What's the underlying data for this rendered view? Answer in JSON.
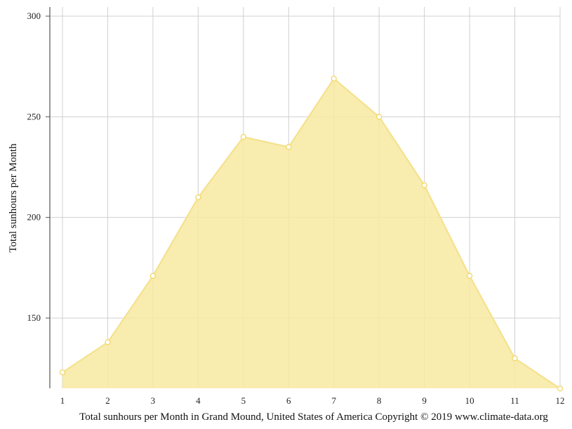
{
  "chart_data": {
    "type": "area",
    "title": "",
    "xlabel": "",
    "ylabel": "Total sunhours per Month",
    "caption": "Total sunhours per Month in Grand Mound, United States of America Copyright © 2019 www.climate-data.org",
    "x": [
      1,
      2,
      3,
      4,
      5,
      6,
      7,
      8,
      9,
      10,
      11,
      12
    ],
    "x_tick_labels": [
      "1",
      "2",
      "3",
      "4",
      "5",
      "6",
      "7",
      "8",
      "9",
      "10",
      "11",
      "12"
    ],
    "y_tick_labels": [
      "300",
      "250",
      "200",
      "150"
    ],
    "y_ticks": [
      300,
      250,
      200,
      150
    ],
    "series": [
      {
        "values": [
          123,
          138,
          171,
          210,
          240,
          235,
          269,
          250,
          216,
          171,
          130,
          115
        ]
      }
    ],
    "ylim": [
      115,
      305
    ],
    "xlim": [
      1,
      12
    ],
    "grid": true,
    "legend": "none",
    "colors": {
      "area_fill": "#f7e9a0",
      "line": "#f5e08a",
      "marker_stroke": "#f2d766",
      "grid": "#d0d0d0",
      "axis": "#555555"
    }
  }
}
